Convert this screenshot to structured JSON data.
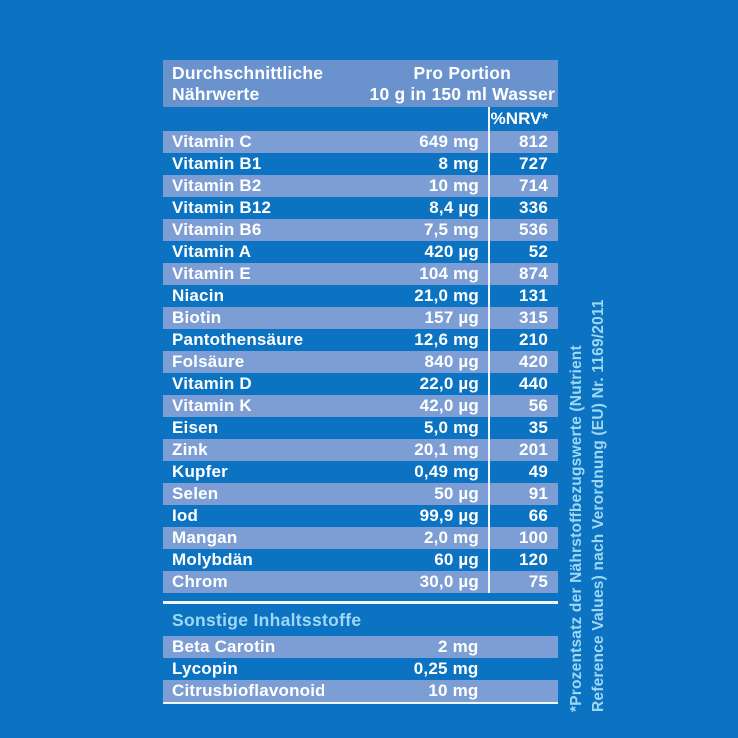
{
  "colors": {
    "background": "#0b73c2",
    "row_stripe": "#7d9ed5",
    "header_band": "#6a93ce",
    "text_white": "#ffffff",
    "text_light_blue": "#9fd8f4",
    "divider_line": "#eef6fc"
  },
  "table": {
    "header": {
      "col1_line1": "Durchschnittliche",
      "col1_line2": "Nährwerte",
      "col2_line1": "Pro Portion",
      "col2_line2": "10 g in 150 ml Wasser"
    },
    "nrv_header": "%NRV*",
    "rows": [
      {
        "label": "Vitamin C",
        "amount": "649 mg",
        "nrv": "812"
      },
      {
        "label": "Vitamin B1",
        "amount": "8 mg",
        "nrv": "727"
      },
      {
        "label": "Vitamin B2",
        "amount": "10 mg",
        "nrv": "714"
      },
      {
        "label": "Vitamin B12",
        "amount": "8,4 µg",
        "nrv": "336"
      },
      {
        "label": "Vitamin B6",
        "amount": "7,5 mg",
        "nrv": "536"
      },
      {
        "label": "Vitamin A",
        "amount": "420 µg",
        "nrv": "52"
      },
      {
        "label": "Vitamin E",
        "amount": "104 mg",
        "nrv": "874"
      },
      {
        "label": "Niacin",
        "amount": "21,0 mg",
        "nrv": "131"
      },
      {
        "label": "Biotin",
        "amount": "157 µg",
        "nrv": "315"
      },
      {
        "label": "Pantothensäure",
        "amount": "12,6 mg",
        "nrv": "210"
      },
      {
        "label": "Folsäure",
        "amount": "840 µg",
        "nrv": "420"
      },
      {
        "label": "Vitamin D",
        "amount": "22,0 µg",
        "nrv": "440"
      },
      {
        "label": "Vitamin K",
        "amount": "42,0 µg",
        "nrv": "56"
      },
      {
        "label": "Eisen",
        "amount": "5,0 mg",
        "nrv": "35"
      },
      {
        "label": "Zink",
        "amount": "20,1 mg",
        "nrv": "201"
      },
      {
        "label": "Kupfer",
        "amount": "0,49 mg",
        "nrv": "49"
      },
      {
        "label": "Selen",
        "amount": "50 µg",
        "nrv": "91"
      },
      {
        "label": "Iod",
        "amount": "99,9 µg",
        "nrv": "66"
      },
      {
        "label": "Mangan",
        "amount": "2,0 mg",
        "nrv": "100"
      },
      {
        "label": "Molybdän",
        "amount": "60 µg",
        "nrv": "120"
      },
      {
        "label": "Chrom",
        "amount": "30,0 µg",
        "nrv": "75"
      }
    ]
  },
  "other_ingredients": {
    "title": "Sonstige Inhaltsstoffe",
    "rows": [
      {
        "label": "Beta Carotin",
        "amount": "2 mg"
      },
      {
        "label": "Lycopin",
        "amount": "0,25 mg"
      },
      {
        "label": "Citrusbioflavonoide",
        "amount": "10 mg"
      }
    ]
  },
  "footnote": {
    "line1": "*Prozentsatz der Nährstoffbezugswerte (Nutrient",
    "line2": "Reference Values) nach Verordnung (EU) Nr. 1169/2011"
  }
}
